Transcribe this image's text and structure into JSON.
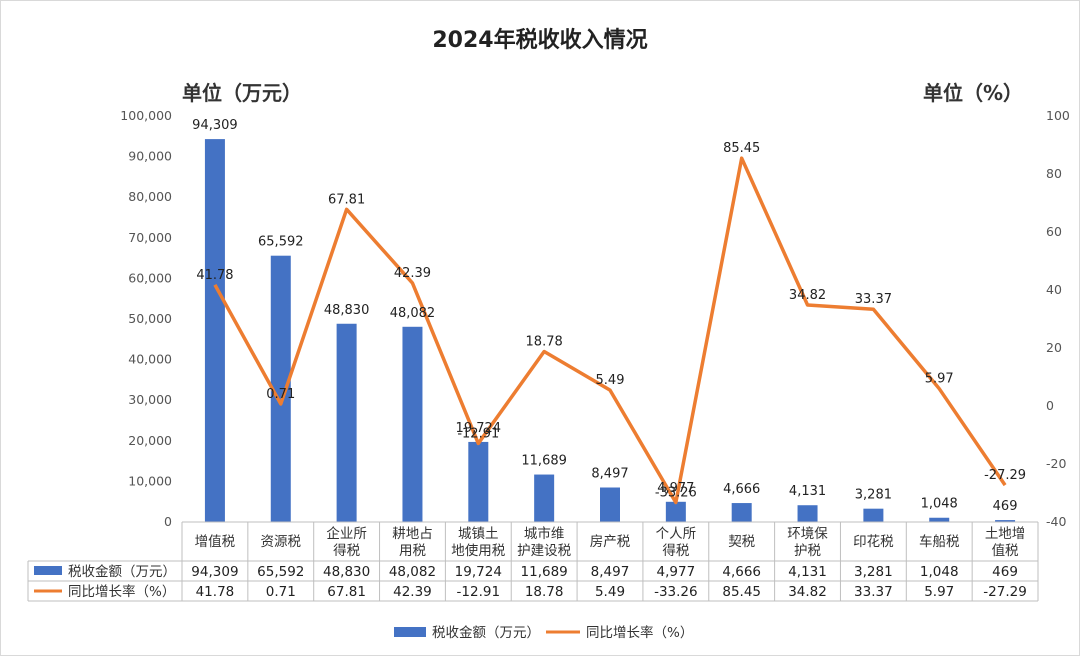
{
  "chart_data": {
    "type": "bar",
    "title": "2024年税收收入情况",
    "ylabel_left": "单位（万元）",
    "ylabel_right": "单位（%）",
    "categories": [
      [
        "增值税"
      ],
      [
        "资源税"
      ],
      [
        "企业所",
        "得税"
      ],
      [
        "耕地占",
        "用税"
      ],
      [
        "城镇土",
        "地使用税"
      ],
      [
        "城市维",
        "护建设税"
      ],
      [
        "房产税"
      ],
      [
        "个人所",
        "得税"
      ],
      [
        "契税"
      ],
      [
        "环境保",
        "护税"
      ],
      [
        "印花税"
      ],
      [
        "车船税"
      ],
      [
        "土地增",
        "值税"
      ]
    ],
    "series": [
      {
        "name": "税收金额（万元）",
        "type": "bar",
        "axis": "left",
        "color": "#4472c4",
        "values": [
          94309,
          65592,
          48830,
          48082,
          19724,
          11689,
          8497,
          4977,
          4666,
          4131,
          3281,
          1048,
          469
        ],
        "labels": [
          "94,309",
          "65,592",
          "48,830",
          "48,082",
          "19,724",
          "11,689",
          "8,497",
          "4,977",
          "4,666",
          "4,131",
          "3,281",
          "1,048",
          "469"
        ]
      },
      {
        "name": "同比增长率（%）",
        "type": "line",
        "axis": "right",
        "color": "#ed7d31",
        "values": [
          41.78,
          0.71,
          67.81,
          42.39,
          -12.91,
          18.78,
          5.49,
          -33.26,
          85.45,
          34.82,
          33.37,
          5.97,
          -27.29
        ],
        "labels": [
          "41.78",
          "0.71",
          "67.81",
          "42.39",
          "-12.91",
          "18.78",
          "5.49",
          "-33.26",
          "85.45",
          "34.82",
          "33.37",
          "5.97",
          "-27.29"
        ]
      }
    ],
    "ylim_left": [
      0,
      100000
    ],
    "yticks_left": [
      "0",
      "10,000",
      "20,000",
      "30,000",
      "40,000",
      "50,000",
      "60,000",
      "70,000",
      "80,000",
      "90,000",
      "100,000"
    ],
    "ylim_right": [
      -40,
      100
    ],
    "yticks_right": [
      "-40",
      "-20",
      "0",
      "20",
      "40",
      "60",
      "80",
      "100"
    ],
    "data_table": true,
    "legend_position": "bottom",
    "grid": false
  }
}
